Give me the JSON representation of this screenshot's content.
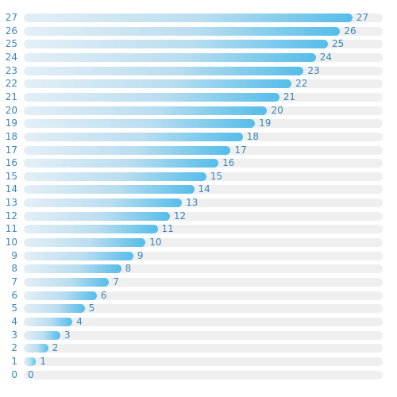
{
  "chart_data": {
    "type": "bar",
    "orientation": "horizontal",
    "categories": [
      "27",
      "26",
      "25",
      "24",
      "23",
      "22",
      "21",
      "20",
      "19",
      "18",
      "17",
      "16",
      "15",
      "14",
      "13",
      "12",
      "11",
      "10",
      "9",
      "8",
      "7",
      "6",
      "5",
      "4",
      "3",
      "2",
      "1",
      "0"
    ],
    "values": [
      27,
      26,
      25,
      24,
      23,
      22,
      21,
      20,
      19,
      18,
      17,
      16,
      15,
      14,
      13,
      12,
      11,
      10,
      9,
      8,
      7,
      6,
      5,
      4,
      3,
      2,
      1,
      0
    ],
    "xlim": [
      0,
      29.5
    ],
    "grid": false,
    "legend": "none",
    "colors": {
      "bar_start": "#e4eff6",
      "bar_mid": "#b9ddf0",
      "bar_end": "#55bde9",
      "track": "#efefef",
      "label": "#3a86b8"
    }
  }
}
